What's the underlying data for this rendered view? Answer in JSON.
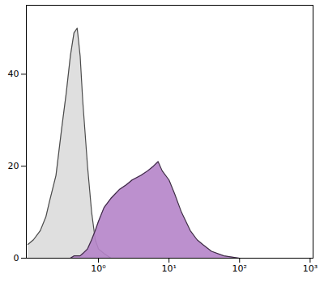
{
  "chart_data": {
    "type": "area",
    "log": "x",
    "grid": false,
    "xlim": [
      0.095,
      1100
    ],
    "ylim": [
      0,
      55
    ],
    "xticks": [
      {
        "value": 1,
        "label": "10⁰"
      },
      {
        "value": 10,
        "label": "10¹"
      },
      {
        "value": 100,
        "label": "10²"
      },
      {
        "value": 1000,
        "label": "10³"
      }
    ],
    "yticks": [
      0,
      20,
      40
    ],
    "x": [
      0.1,
      0.12,
      0.15,
      0.18,
      0.2,
      0.25,
      0.3,
      0.35,
      0.4,
      0.45,
      0.5,
      0.55,
      0.6,
      0.7,
      0.8,
      0.9,
      1,
      1.2,
      1.5,
      2,
      2.5,
      3,
      4,
      5,
      6,
      7,
      8,
      10,
      12,
      15,
      20,
      25,
      30,
      40,
      60,
      100
    ],
    "series": [
      {
        "color": "#dcdcdc",
        "values": [
          3,
          4,
          6,
          9,
          12,
          18,
          28,
          36,
          44,
          49,
          50,
          44,
          34,
          20,
          10,
          4,
          2,
          1,
          0,
          0,
          0,
          0,
          0,
          0,
          0,
          0,
          0,
          0,
          0,
          0,
          0,
          0,
          0,
          0,
          0,
          0
        ]
      },
      {
        "color": "#b584c9",
        "values": [
          0,
          0,
          0,
          0,
          0,
          0,
          0,
          0,
          0,
          0.5,
          0.5,
          0.5,
          1,
          2,
          4,
          6,
          8,
          11,
          13,
          15,
          16,
          17,
          18,
          19,
          20,
          21,
          19,
          17,
          14,
          10,
          6,
          4,
          3,
          1.5,
          0.5,
          0
        ]
      }
    ]
  }
}
